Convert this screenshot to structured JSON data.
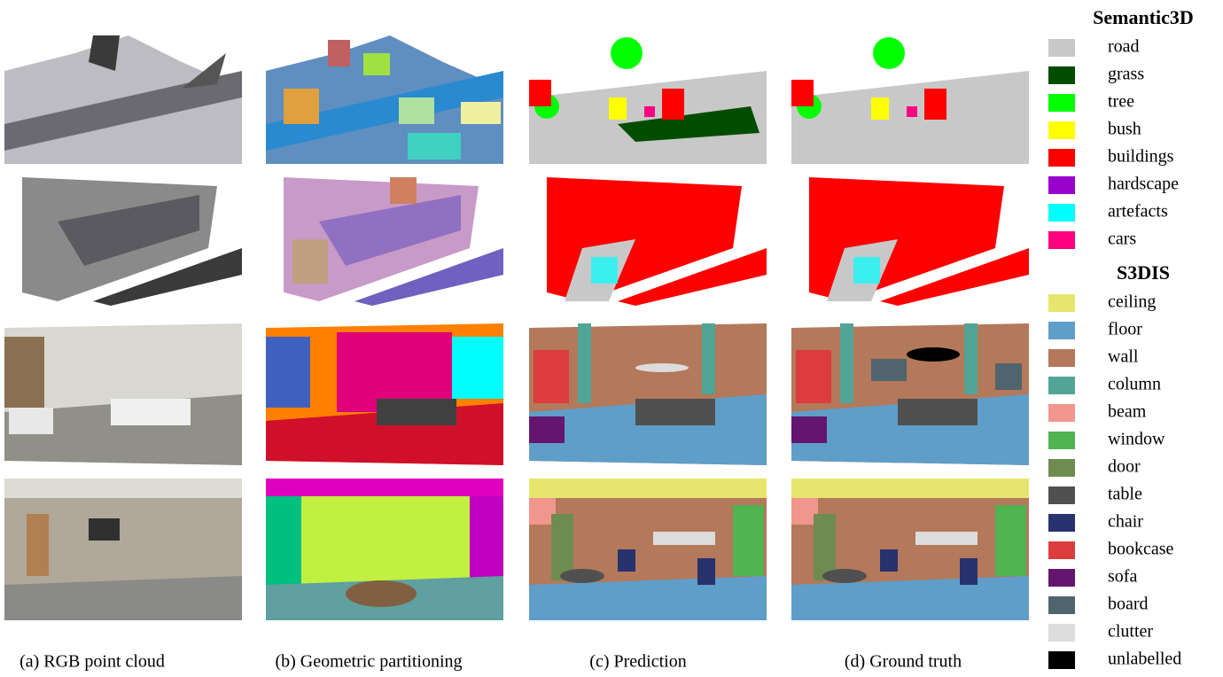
{
  "captions": [
    "(a) RGB point cloud",
    "(b) Geometric partitioning",
    "(c) Prediction",
    "(d) Ground truth"
  ],
  "legend": [
    {
      "title": "Semantic3D",
      "items": [
        {
          "label": "road",
          "color": "#c8c8c8"
        },
        {
          "label": "grass",
          "color": "#004d00"
        },
        {
          "label": "tree",
          "color": "#00ff00"
        },
        {
          "label": "bush",
          "color": "#ffff00"
        },
        {
          "label": "buildings",
          "color": "#ff0000"
        },
        {
          "label": "hardscape",
          "color": "#9900cc"
        },
        {
          "label": "artefacts",
          "color": "#00ffff"
        },
        {
          "label": "cars",
          "color": "#ff0080"
        }
      ]
    },
    {
      "title": "S3DIS",
      "items": [
        {
          "label": "ceiling",
          "color": "#e6e66e"
        },
        {
          "label": "floor",
          "color": "#5f9ec8"
        },
        {
          "label": "wall",
          "color": "#b4785a"
        },
        {
          "label": "column",
          "color": "#50a596"
        },
        {
          "label": "beam",
          "color": "#f0968c"
        },
        {
          "label": "window",
          "color": "#50b450"
        },
        {
          "label": "door",
          "color": "#6e8c50"
        },
        {
          "label": "table",
          "color": "#505050"
        },
        {
          "label": "chair",
          "color": "#28326e"
        },
        {
          "label": "bookcase",
          "color": "#dc3c3c"
        },
        {
          "label": "sofa",
          "color": "#64166e"
        },
        {
          "label": "board",
          "color": "#50646e"
        },
        {
          "label": "clutter",
          "color": "#dcdcdc"
        },
        {
          "label": "unlabelled",
          "color": "#000000"
        }
      ]
    }
  ]
}
